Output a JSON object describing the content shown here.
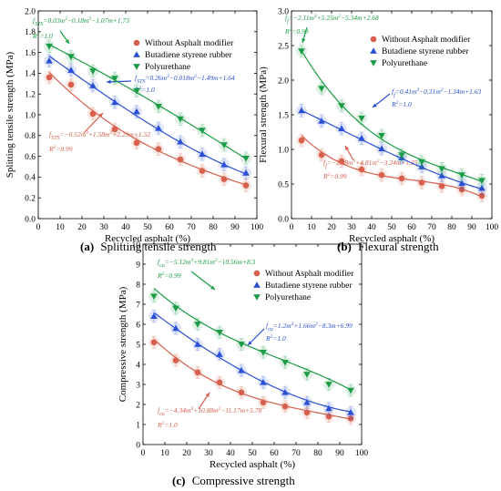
{
  "figure": {
    "panels": [
      {
        "id": "a",
        "caption_letter": "(a)",
        "caption_text": "Splitting tensile strength"
      },
      {
        "id": "b",
        "caption_letter": "(b)",
        "caption_text": "Flexural strength"
      },
      {
        "id": "c",
        "caption_letter": "(c)",
        "caption_text": "Compressive strength"
      }
    ]
  },
  "chart_data": [
    {
      "type": "scatter",
      "id": "a",
      "xlabel": "Recycled asphalt (%)",
      "ylabel": "Splitting tensile strength (MPa)",
      "xlim": [
        0,
        100
      ],
      "ylim": [
        0,
        2.0
      ],
      "xticks": [
        0,
        10,
        20,
        30,
        40,
        50,
        60,
        70,
        80,
        90,
        100
      ],
      "yticks": [
        0.0,
        0.2,
        0.4,
        0.6,
        0.8,
        1.0,
        1.2,
        1.4,
        1.6,
        1.8,
        2.0
      ],
      "ytick_labels": [
        "0.0",
        "0.2",
        "0.4",
        "0.6",
        "0.8",
        "1.0",
        "1.2",
        "1.4",
        "1.6",
        "1.8",
        "2.0"
      ],
      "legend": [
        "Without Asphalt modifier",
        "Butadiene styrene rubber",
        "Polyurethane"
      ],
      "x": [
        5,
        15,
        25,
        35,
        45,
        55,
        65,
        75,
        85,
        95
      ],
      "series": [
        {
          "name": "Without Asphalt modifier",
          "color": "#d6604d",
          "marker": "circle",
          "values": [
            1.36,
            1.29,
            1.01,
            0.86,
            0.73,
            0.67,
            0.57,
            0.46,
            0.38,
            0.32
          ],
          "fit": [
            -0.52,
            1.58,
            -2.29,
            1.52
          ],
          "equation": "fSTS=−0.52m3+1.58m2−2.29m+1.52",
          "r2": "R2=0.99"
        },
        {
          "name": "Butadiene styrene rubber",
          "color": "#2b50d4",
          "marker": "triangle-up",
          "values": [
            1.52,
            1.43,
            1.28,
            1.12,
            1.03,
            0.87,
            0.74,
            0.62,
            0.52,
            0.44
          ],
          "fit": [
            0.26,
            -0.018,
            -1.49,
            1.64
          ],
          "equation": "fSTS=0.26m3−0.018m2−1.49m+1.64",
          "r2": "R2=1.0"
        },
        {
          "name": "Polyurethane",
          "color": "#1a9c46",
          "marker": "triangle-down",
          "values": [
            1.66,
            1.56,
            1.42,
            1.35,
            1.23,
            1.08,
            0.96,
            0.85,
            0.71,
            0.58
          ],
          "fit": [
            0.03,
            -0.18,
            -1.07,
            1.73
          ],
          "equation": "fSTS=0.03m3−0.18m2−1.07m+1.73",
          "r2": "R2=1.0"
        }
      ]
    },
    {
      "type": "scatter",
      "id": "b",
      "xlabel": "Recycled asphalt (%)",
      "ylabel": "Flexural strength (MPa)",
      "xlim": [
        0,
        100
      ],
      "ylim": [
        0,
        3.0
      ],
      "xticks": [
        0,
        10,
        20,
        30,
        40,
        50,
        60,
        70,
        80,
        90,
        100
      ],
      "yticks": [
        0.0,
        0.5,
        1.0,
        1.5,
        2.0,
        2.5,
        3.0
      ],
      "ytick_labels": [
        "0.0",
        "0.5",
        "1.0",
        "1.5",
        "2.0",
        "2.5",
        "3.0"
      ],
      "legend": [
        "Without Asphalt modifier",
        "Butadiene styrene rubber",
        "Polyurethane"
      ],
      "x": [
        5,
        15,
        25,
        35,
        45,
        55,
        65,
        75,
        85,
        95
      ],
      "series": [
        {
          "name": "Without Asphalt modifier",
          "color": "#d6604d",
          "marker": "circle",
          "values": [
            1.13,
            0.92,
            0.83,
            0.71,
            0.63,
            0.58,
            0.52,
            0.47,
            0.42,
            0.33
          ],
          "fit": [
            -2.68,
            4.81,
            -3.24,
            1.35
          ],
          "equation": "ff=−2.68m3+4.81m2−3.24m+1.35",
          "r2": "R2=0.99"
        },
        {
          "name": "Butadiene styrene rubber",
          "color": "#2b50d4",
          "marker": "triangle-up",
          "values": [
            1.56,
            1.41,
            1.3,
            1.16,
            1.01,
            0.88,
            0.75,
            0.62,
            0.51,
            0.44
          ],
          "fit": [
            0.41,
            -0.31,
            -1.34,
            1.63
          ],
          "equation": "ff=0.41m3−0.31m2−1.34m+1.63",
          "r2": "R2=1.0"
        },
        {
          "name": "Polyurethane",
          "color": "#1a9c46",
          "marker": "triangle-down",
          "values": [
            2.42,
            1.88,
            1.63,
            1.45,
            1.2,
            0.92,
            0.82,
            0.72,
            0.63,
            0.55
          ],
          "fit": [
            -2.11,
            5.25,
            -5.34,
            2.68
          ],
          "equation": "ff=−2.11m3+5.25m2−5.34m+2.68",
          "r2": "R2=0.99"
        }
      ]
    },
    {
      "type": "scatter",
      "id": "c",
      "xlabel": "Recycled asphalt (%)",
      "ylabel": "Compressive strength (MPa)",
      "xlim": [
        0,
        100
      ],
      "ylim": [
        0,
        10
      ],
      "xticks": [
        0,
        10,
        20,
        30,
        40,
        50,
        60,
        70,
        80,
        90,
        100
      ],
      "yticks": [
        0,
        1,
        2,
        3,
        4,
        5,
        6,
        7,
        8,
        9,
        10
      ],
      "ytick_labels": [
        "0",
        "1",
        "2",
        "3",
        "4",
        "5",
        "6",
        "7",
        "8",
        "9",
        "10"
      ],
      "legend": [
        "Without Asphalt modifier",
        "Butadiene styrene rubber",
        "Polyurethane"
      ],
      "x": [
        5,
        15,
        25,
        35,
        45,
        55,
        65,
        75,
        85,
        95
      ],
      "series": [
        {
          "name": "Without Asphalt modifier",
          "color": "#d6604d",
          "marker": "circle",
          "values": [
            5.1,
            4.2,
            3.6,
            3.1,
            2.6,
            2.1,
            1.9,
            1.6,
            1.4,
            1.3
          ],
          "fit": [
            -4.34,
            10.88,
            -11.17,
            5.78
          ],
          "equation": "fcu=−4.34m3+10.88m2−11.17m+5.78",
          "r2": "R2=1.0"
        },
        {
          "name": "Butadiene styrene rubber",
          "color": "#2b50d4",
          "marker": "triangle-up",
          "values": [
            6.4,
            5.8,
            5.0,
            4.5,
            3.7,
            3.1,
            2.6,
            2.1,
            1.8,
            1.6
          ],
          "fit": [
            1.2,
            1.66,
            -8.3,
            6.99
          ],
          "equation": "fcu=1.2m3+1.66m2−8.3m+6.99",
          "r2": "R2=1.0"
        },
        {
          "name": "Polyurethane",
          "color": "#1a9c46",
          "marker": "triangle-down",
          "values": [
            7.4,
            6.8,
            6.0,
            5.6,
            5.0,
            4.6,
            4.1,
            3.5,
            3.0,
            2.7
          ],
          "fit": [
            -5.12,
            9.81,
            -10.56,
            8.3
          ],
          "equation": "fcu=−5.12m3+9.81m2−10.56m+8.3",
          "r2": "R2=0.99"
        }
      ]
    }
  ]
}
